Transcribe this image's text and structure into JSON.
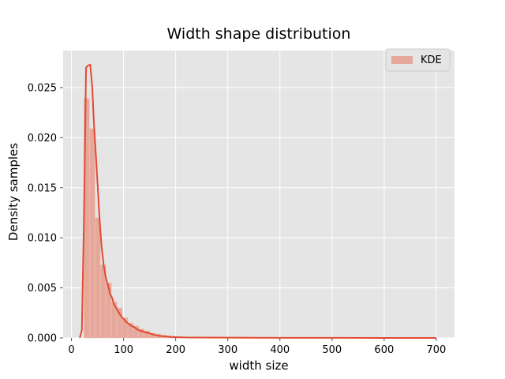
{
  "chart_data": {
    "type": "histogram",
    "title": "Width shape distribution",
    "xlabel": "width size",
    "ylabel": "Density samples",
    "xlim": [
      -16,
      735
    ],
    "ylim": [
      0,
      0.0287
    ],
    "xticks": [
      0,
      100,
      200,
      300,
      400,
      500,
      600,
      700
    ],
    "xtick_labels": [
      "0",
      "100",
      "200",
      "300",
      "400",
      "500",
      "600",
      "700"
    ],
    "yticks": [
      0,
      0.005,
      0.01,
      0.015,
      0.02,
      0.025
    ],
    "ytick_labels": [
      "0.000",
      "0.005",
      "0.010",
      "0.015",
      "0.020",
      "0.025"
    ],
    "grid": true,
    "legend": {
      "position": "top-right",
      "entries": [
        "KDE"
      ]
    },
    "colors": {
      "bar": "#E5A89B",
      "line": "#E24A33",
      "background": "#E5E5E5",
      "grid": "#FFFFFF"
    },
    "bin_width": 10.5,
    "bins": [
      {
        "x0": 24,
        "x1": 34.5,
        "value": 0.0239
      },
      {
        "x0": 34.5,
        "x1": 45,
        "value": 0.0209
      },
      {
        "x0": 45,
        "x1": 55.5,
        "value": 0.012
      },
      {
        "x0": 55.5,
        "x1": 66,
        "value": 0.0073
      },
      {
        "x0": 66,
        "x1": 76.5,
        "value": 0.0055
      },
      {
        "x0": 76.5,
        "x1": 87,
        "value": 0.0036
      },
      {
        "x0": 87,
        "x1": 97.5,
        "value": 0.003
      },
      {
        "x0": 97.5,
        "x1": 108,
        "value": 0.002
      },
      {
        "x0": 108,
        "x1": 118.5,
        "value": 0.0015
      },
      {
        "x0": 118.5,
        "x1": 129,
        "value": 0.0012
      },
      {
        "x0": 129,
        "x1": 139.5,
        "value": 0.0009
      },
      {
        "x0": 139.5,
        "x1": 150,
        "value": 0.0007
      },
      {
        "x0": 150,
        "x1": 160.5,
        "value": 0.0005
      },
      {
        "x0": 160.5,
        "x1": 171,
        "value": 0.0004
      },
      {
        "x0": 171,
        "x1": 181.5,
        "value": 0.0003
      },
      {
        "x0": 181.5,
        "x1": 192,
        "value": 0.0002
      },
      {
        "x0": 192,
        "x1": 202.5,
        "value": 0.00015
      },
      {
        "x0": 202.5,
        "x1": 213,
        "value": 0.0001
      },
      {
        "x0": 213,
        "x1": 223.5,
        "value": 0.0001
      },
      {
        "x0": 223.5,
        "x1": 234,
        "value": 6e-05
      },
      {
        "x0": 234,
        "x1": 245,
        "value": 5e-05
      },
      {
        "x0": 245,
        "x1": 256,
        "value": 4e-05
      },
      {
        "x0": 256,
        "x1": 267,
        "value": 4e-05
      },
      {
        "x0": 267,
        "x1": 278,
        "value": 3e-05
      },
      {
        "x0": 278,
        "x1": 300,
        "value": 3e-05
      },
      {
        "x0": 300,
        "x1": 350,
        "value": 2e-05
      },
      {
        "x0": 350,
        "x1": 450,
        "value": 1.5e-05
      },
      {
        "x0": 450,
        "x1": 600,
        "value": 1e-05
      },
      {
        "x0": 600,
        "x1": 700,
        "value": 5e-06
      }
    ],
    "kde": {
      "x": [
        16,
        20,
        24,
        28,
        32,
        36,
        40,
        43,
        46,
        50,
        54,
        58,
        62,
        66,
        70,
        74,
        78,
        82,
        86,
        90,
        95,
        100,
        105,
        110,
        115,
        120,
        125,
        130,
        140,
        150,
        160,
        170,
        180,
        190,
        200,
        220,
        250,
        300,
        400,
        500,
        600,
        700
      ],
      "y": [
        0,
        0.0008,
        0.012,
        0.027,
        0.0272,
        0.0273,
        0.025,
        0.0215,
        0.019,
        0.0155,
        0.0118,
        0.009,
        0.0072,
        0.006,
        0.0053,
        0.0044,
        0.004,
        0.0033,
        0.003,
        0.0026,
        0.0022,
        0.0019,
        0.0016,
        0.0014,
        0.0012,
        0.0011,
        0.0009,
        0.00075,
        0.0006,
        0.00045,
        0.0003,
        0.0002,
        0.00015,
        0.0001,
        8e-05,
        5e-05,
        4e-05,
        3e-05,
        1e-05,
        6e-06,
        4e-06,
        3e-06
      ]
    }
  }
}
